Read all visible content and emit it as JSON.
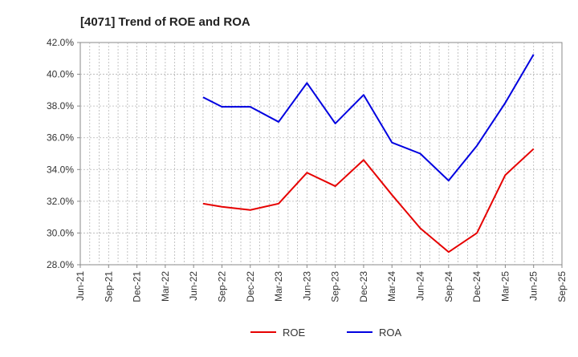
{
  "chart_data": {
    "type": "line",
    "title": "[4071]  Trend of ROE and ROA",
    "xlabel": "",
    "ylabel": "",
    "x_ticks": [
      "Jun-21",
      "Sep-21",
      "Dec-21",
      "Mar-22",
      "Jun-22",
      "Sep-22",
      "Dec-22",
      "Mar-23",
      "Jun-23",
      "Sep-23",
      "Dec-23",
      "Mar-24",
      "Jun-24",
      "Sep-24",
      "Dec-24",
      "Mar-25",
      "Jun-25",
      "Sep-25"
    ],
    "y_ticks": [
      "28.0%",
      "30.0%",
      "32.0%",
      "34.0%",
      "36.0%",
      "38.0%",
      "40.0%",
      "42.0%"
    ],
    "ylim": [
      28.0,
      42.0
    ],
    "y_unit": "%",
    "grid": true,
    "legend_position": "bottom-center",
    "series": [
      {
        "name": "ROE",
        "color": "#e60000",
        "x": [
          "Jul-22",
          "Sep-22",
          "Dec-22",
          "Mar-23",
          "Jun-23",
          "Sep-23",
          "Dec-23",
          "Mar-24",
          "Jun-24",
          "Sep-24",
          "Dec-24",
          "Mar-25",
          "Jun-25"
        ],
        "values": [
          31.85,
          31.65,
          31.45,
          31.85,
          33.8,
          32.95,
          34.6,
          32.4,
          30.3,
          28.8,
          30.0,
          33.65,
          35.3
        ]
      },
      {
        "name": "ROA",
        "color": "#0000e0",
        "x": [
          "Jul-22",
          "Sep-22",
          "Dec-22",
          "Mar-23",
          "Jun-23",
          "Sep-23",
          "Dec-23",
          "Mar-24",
          "Jun-24",
          "Sep-24",
          "Dec-24",
          "Mar-25",
          "Jun-25"
        ],
        "values": [
          38.55,
          37.95,
          37.95,
          37.0,
          39.45,
          36.9,
          38.7,
          35.7,
          35.0,
          33.3,
          35.5,
          38.2,
          41.25
        ]
      }
    ]
  }
}
